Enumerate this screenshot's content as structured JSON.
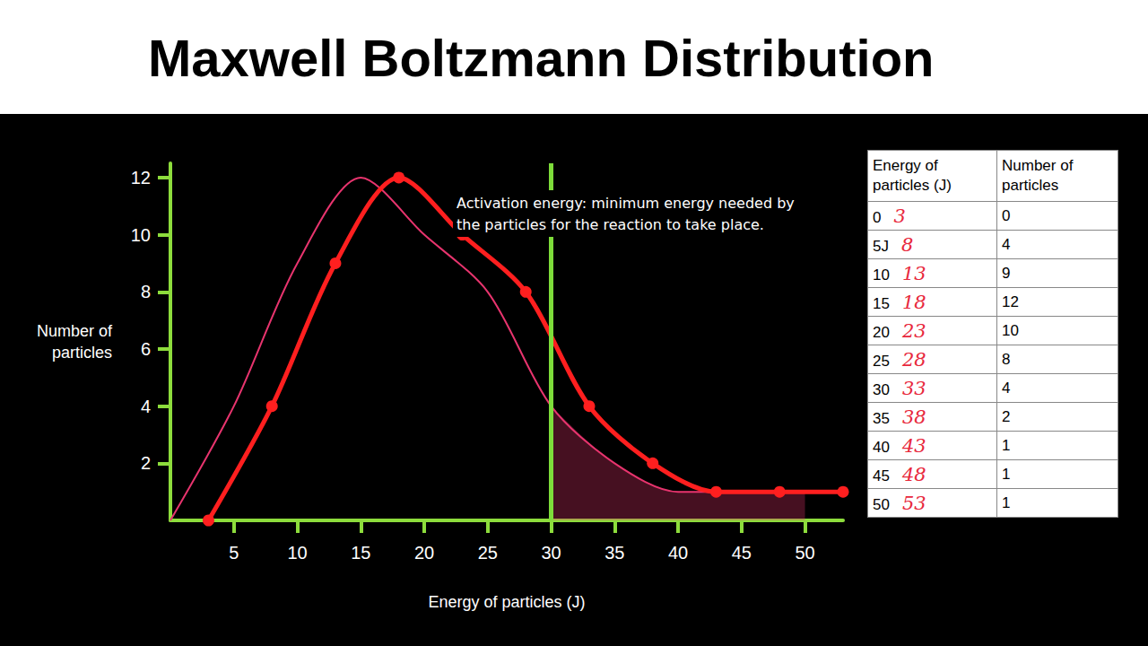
{
  "chart_data": {
    "type": "line",
    "title": "Maxwell Boltzmann Distribution",
    "x_label": "Energy of particles (J)",
    "y_label": "Number of particles",
    "annotations": [
      "Activation energy: minimum energy needed by the particles for the reaction to take place."
    ],
    "series": [
      {
        "color": "#e8346e",
        "marker": "none",
        "line_style": "solid",
        "x": [
          0,
          5,
          10,
          15,
          20,
          25,
          30,
          35,
          40,
          45,
          50
        ],
        "values": [
          0,
          4,
          9,
          12,
          10,
          8,
          4,
          2,
          1,
          1,
          1
        ]
      },
      {
        "color": "#ff1f1f",
        "marker": "circle",
        "line_style": "solid",
        "x": [
          3,
          8,
          13,
          18,
          23,
          28,
          33,
          38,
          43,
          48,
          53
        ],
        "values": [
          0,
          4,
          9,
          12,
          10,
          8,
          4,
          2,
          1,
          1,
          1
        ]
      }
    ],
    "vline": {
      "x": 30,
      "color": "#7ddc3a"
    },
    "xlim": [
      0,
      53
    ],
    "ylim": [
      0,
      12.5
    ],
    "xticks": [
      5,
      10,
      15,
      20,
      25,
      30,
      35,
      40,
      45,
      50
    ],
    "yticks": [
      2,
      4,
      6,
      8,
      10,
      12
    ],
    "grid": false
  },
  "table": {
    "columns": [
      "Energy of particles (J)",
      "Number of particles"
    ],
    "rows": [
      {
        "energy": "0",
        "handwritten": "3",
        "number": "0"
      },
      {
        "energy": "5J",
        "handwritten": "8",
        "number": "4"
      },
      {
        "energy": "10",
        "handwritten": "13",
        "number": "9"
      },
      {
        "energy": "15",
        "handwritten": "18",
        "number": "12"
      },
      {
        "energy": "20",
        "handwritten": "23",
        "number": "10"
      },
      {
        "energy": "25",
        "handwritten": "28",
        "number": "8"
      },
      {
        "energy": "30",
        "handwritten": "33",
        "number": "4"
      },
      {
        "energy": "35",
        "handwritten": "38",
        "number": "2"
      },
      {
        "energy": "40",
        "handwritten": "43",
        "number": "1"
      },
      {
        "energy": "45",
        "handwritten": "48",
        "number": "1"
      },
      {
        "energy": "50",
        "handwritten": "53",
        "number": "1"
      }
    ]
  }
}
